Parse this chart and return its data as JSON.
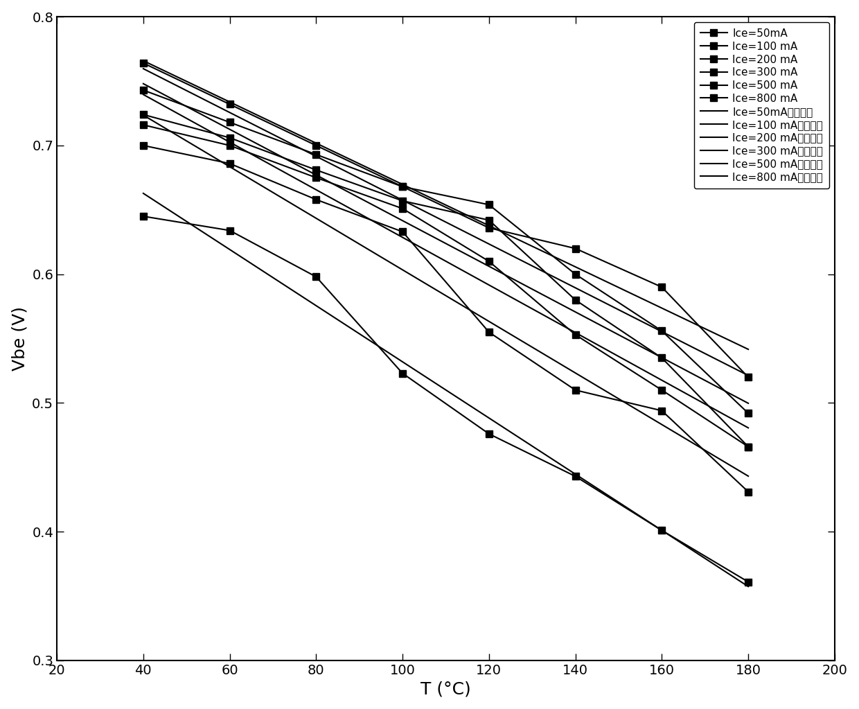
{
  "title": "",
  "xlabel": "T (°C)",
  "ylabel": "Vbe (V)",
  "xlim": [
    20,
    200
  ],
  "ylim": [
    0.3,
    0.8
  ],
  "xticks": [
    20,
    40,
    60,
    80,
    100,
    120,
    140,
    160,
    180,
    200
  ],
  "yticks": [
    0.3,
    0.4,
    0.5,
    0.6,
    0.7,
    0.8
  ],
  "temperatures": [
    40,
    60,
    80,
    100,
    120,
    140,
    160,
    180
  ],
  "series": [
    {
      "label": "Ice=50mA",
      "fit_label": "Ice=50mA拟合直线",
      "data": [
        0.764,
        0.744,
        0.723,
        0.703,
        0.683,
        0.62,
        0.59,
        0.52
      ]
    },
    {
      "label": "Ice=100 mA",
      "fit_label": "Ice=100 mA拟合直线",
      "data": [
        0.743,
        0.728,
        0.706,
        0.686,
        0.665,
        0.6,
        0.556,
        0.492
      ]
    },
    {
      "label": "Ice=200 mA",
      "fit_label": "Ice=200 mA拟合直线",
      "data": [
        0.724,
        0.713,
        0.69,
        0.668,
        0.648,
        0.58,
        0.535,
        0.466
      ]
    },
    {
      "label": "Ice=300 mA",
      "fit_label": "Ice=300 mA拟合直线",
      "data": [
        0.716,
        0.705,
        0.68,
        0.66,
        0.628,
        0.555,
        0.51,
        0.466
      ]
    },
    {
      "label": "Ice=500 mA",
      "fit_label": "Ice=500 mA拟合直线",
      "data": [
        0.7,
        0.688,
        0.66,
        0.637,
        0.555,
        0.51,
        0.494,
        0.431
      ]
    },
    {
      "label": "Ice=800 mA",
      "fit_label": "Ice=800 mA拟合直线",
      "data": [
        0.645,
        0.634,
        0.6,
        0.523,
        0.476,
        0.443,
        0.401,
        0.361
      ]
    }
  ],
  "data_color": "black",
  "fit_color": "black",
  "marker": "s",
  "markersize": 7,
  "linewidth": 1.5,
  "legend_fontsize": 11,
  "axis_fontsize": 18,
  "tick_fontsize": 14
}
